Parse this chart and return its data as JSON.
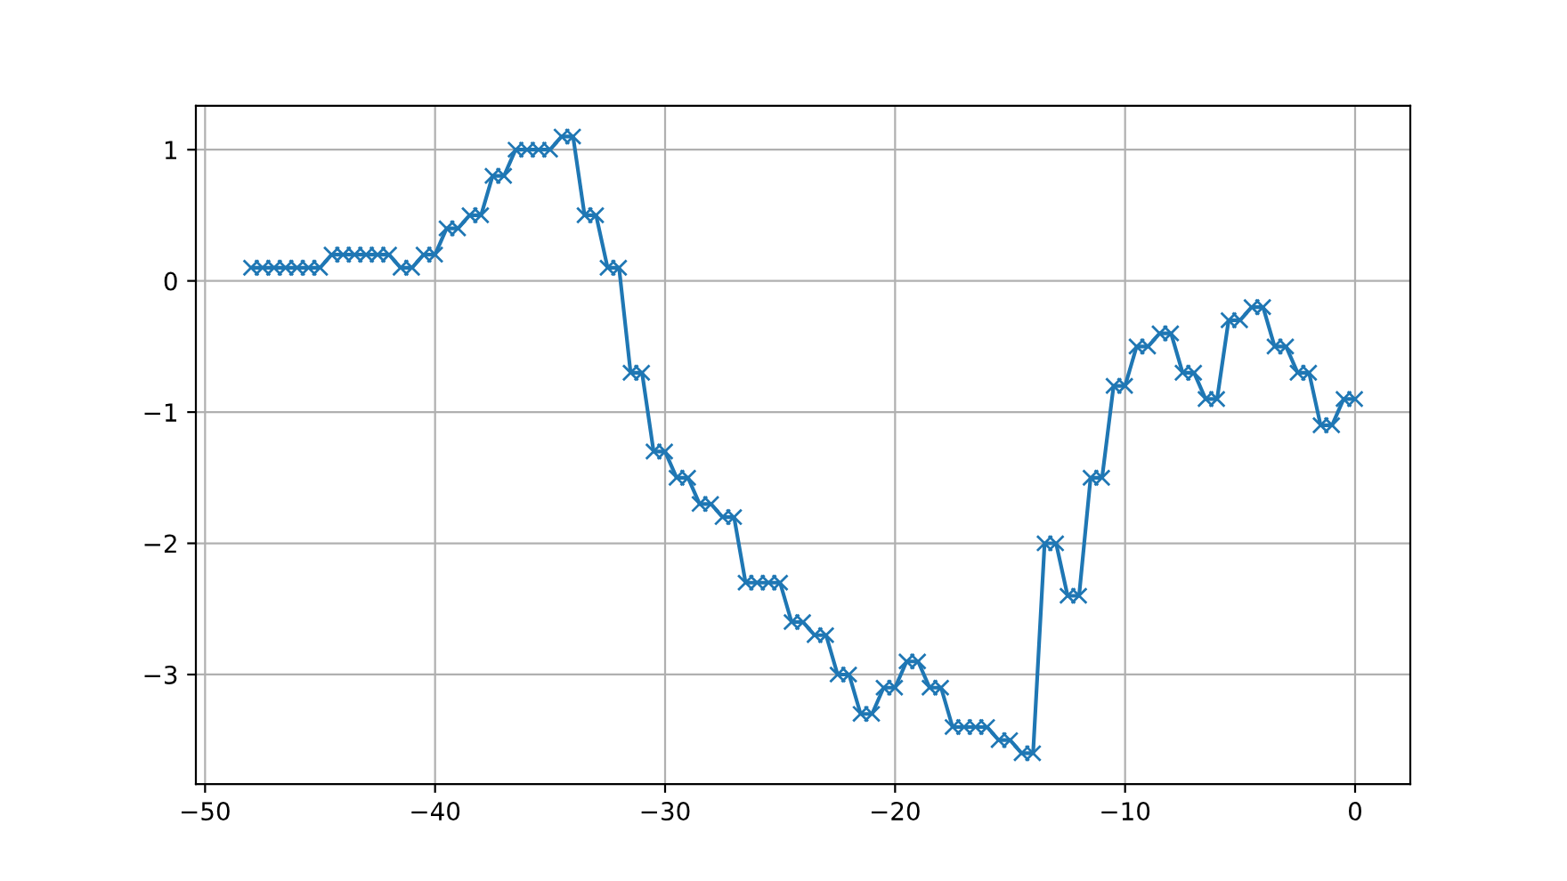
{
  "chart_data": {
    "type": "line",
    "x": [
      -48,
      -47.5,
      -47,
      -46.5,
      -46,
      -45.5,
      -45,
      -44.5,
      -44,
      -43.5,
      -43,
      -42.5,
      -42,
      -41.5,
      -41,
      -40.5,
      -40,
      -39.5,
      -39,
      -38.5,
      -38,
      -37.5,
      -37,
      -36.5,
      -36,
      -35.5,
      -35,
      -34.5,
      -34,
      -33.5,
      -33,
      -32.5,
      -32,
      -31.5,
      -31,
      -30.5,
      -30,
      -29.5,
      -29,
      -28.5,
      -28,
      -27.5,
      -27,
      -26.5,
      -26,
      -25.5,
      -25,
      -24.5,
      -24,
      -23.5,
      -23,
      -22.5,
      -22,
      -21.5,
      -21,
      -20.5,
      -20,
      -19.5,
      -19,
      -18.5,
      -18,
      -17.5,
      -17,
      -16.5,
      -16,
      -15.5,
      -15,
      -14.5,
      -14,
      -13.5,
      -13,
      -12.5,
      -12,
      -11.5,
      -11,
      -10.5,
      -10,
      -9.5,
      -9,
      -8.5,
      -8,
      -7.5,
      -7,
      -6.5,
      -6,
      -5.5,
      -5,
      -4.5,
      -4,
      -3.5,
      -3,
      -2.5,
      -2,
      -1.5,
      -1,
      -0.5,
      0
    ],
    "series": [
      {
        "color": "#1f77b4",
        "values": [
          0.1,
          0.1,
          0.1,
          0.1,
          0.1,
          0.1,
          0.1,
          0.2,
          0.2,
          0.2,
          0.2,
          0.2,
          0.2,
          0.1,
          0.1,
          0.2,
          0.2,
          0.4,
          0.4,
          0.5,
          0.5,
          0.8,
          0.8,
          1.0,
          1.0,
          1.0,
          1.0,
          1.1,
          1.1,
          0.5,
          0.5,
          0.1,
          0.1,
          -0.7,
          -0.7,
          -1.3,
          -1.3,
          -1.5,
          -1.5,
          -1.7,
          -1.7,
          -1.8,
          -1.8,
          -2.3,
          -2.3,
          -2.3,
          -2.3,
          -2.6,
          -2.6,
          -2.7,
          -2.7,
          -3.0,
          -3.0,
          -3.3,
          -3.3,
          -3.1,
          -3.1,
          -2.9,
          -2.9,
          -3.1,
          -3.1,
          -3.4,
          -3.4,
          -3.4,
          -3.4,
          -3.5,
          -3.5,
          -3.6,
          -3.6,
          -2.0,
          -2.0,
          -2.4,
          -2.4,
          -1.5,
          -1.5,
          -0.8,
          -0.8,
          -0.5,
          -0.5,
          -0.4,
          -0.4,
          -0.7,
          -0.7,
          -0.9,
          -0.9,
          -0.3,
          -0.3,
          -0.2,
          -0.2,
          -0.5,
          -0.5,
          -0.7,
          -0.7,
          -1.1,
          -1.1,
          -0.9,
          -0.9
        ]
      }
    ],
    "xlim": [
      -50.4,
      2.4
    ],
    "xticks": [
      {
        "value": -50,
        "label": "−50"
      },
      {
        "value": -40,
        "label": "−40"
      },
      {
        "value": -30,
        "label": "−30"
      },
      {
        "value": -20,
        "label": "−20"
      },
      {
        "value": -10,
        "label": "−10"
      },
      0
    ],
    "ylim": [
      -3.835,
      1.335
    ],
    "yticks": [
      {
        "value": -3,
        "label": "−3"
      },
      {
        "value": -2,
        "label": "−2"
      },
      {
        "value": -1,
        "label": "−1"
      },
      0,
      1
    ],
    "grid": true,
    "marker": "cross",
    "line_style": "solid"
  }
}
